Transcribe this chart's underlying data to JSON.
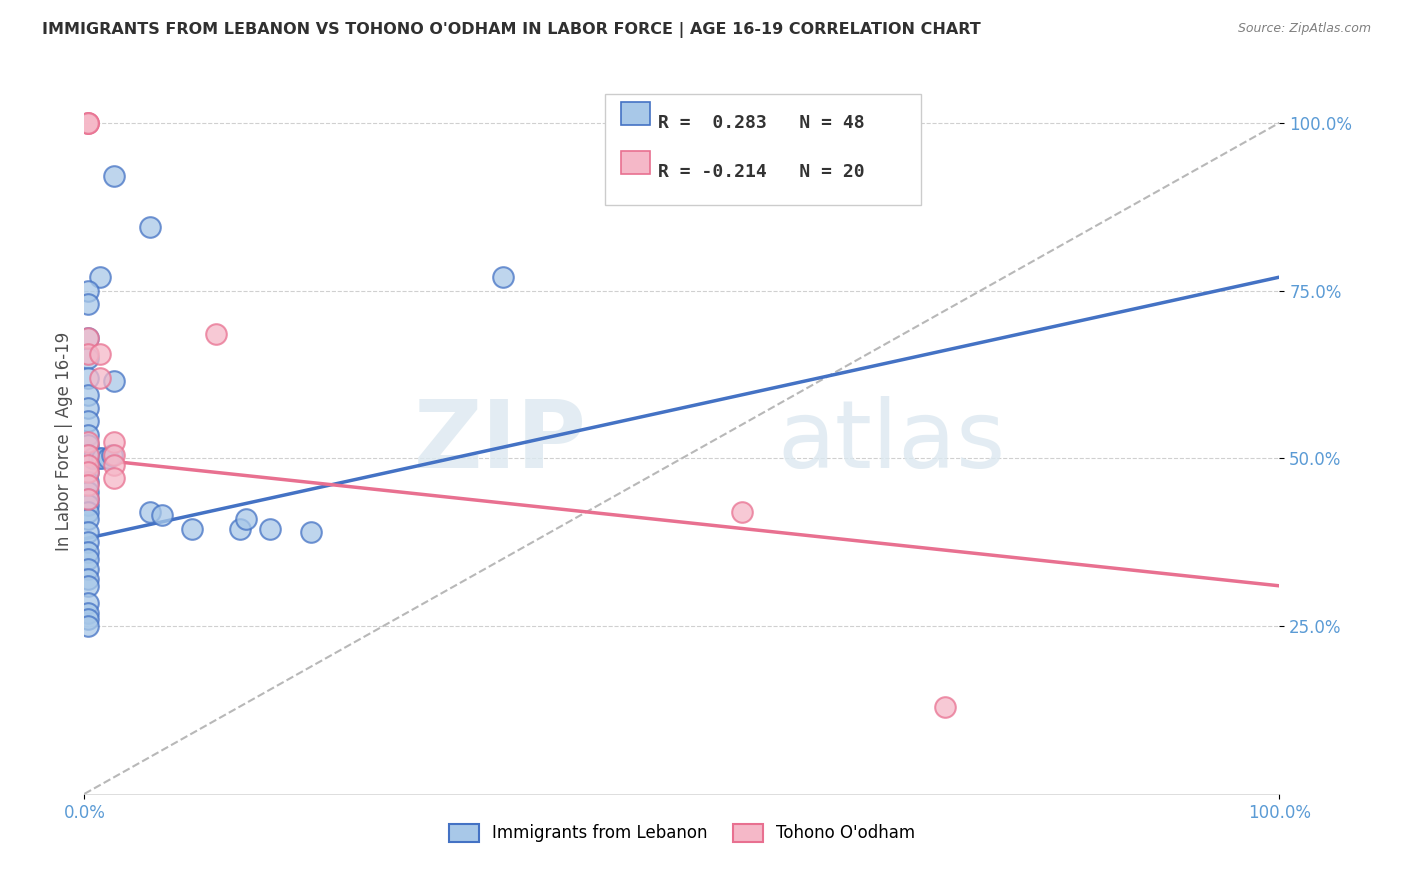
{
  "title": "IMMIGRANTS FROM LEBANON VS TOHONO O'ODHAM IN LABOR FORCE | AGE 16-19 CORRELATION CHART",
  "source": "Source: ZipAtlas.com",
  "ylabel": "In Labor Force | Age 16-19",
  "xlim": [
    0.0,
    1.0
  ],
  "ylim": [
    0.0,
    1.05
  ],
  "xtick_labels": [
    "0.0%",
    "100.0%"
  ],
  "ytick_labels": [
    "25.0%",
    "50.0%",
    "75.0%",
    "100.0%"
  ],
  "ytick_positions": [
    0.25,
    0.5,
    0.75,
    1.0
  ],
  "xtick_positions": [
    0.0,
    1.0
  ],
  "legend_r1": "R =  0.283",
  "legend_n1": "N = 48",
  "legend_r2": "R = -0.214",
  "legend_n2": "N = 20",
  "color_blue": "#a8c8e8",
  "color_pink": "#f5b8c8",
  "line_blue": "#4472c4",
  "line_pink": "#e87090",
  "line_dashed": "#b8b8b8",
  "watermark_zip": "ZIP",
  "watermark_atlas": "atlas",
  "blue_scatter_x": [
    0.025,
    0.055,
    0.013,
    0.003,
    0.003,
    0.003,
    0.003,
    0.003,
    0.003,
    0.003,
    0.003,
    0.003,
    0.003,
    0.003,
    0.003,
    0.003,
    0.003,
    0.003,
    0.003,
    0.003,
    0.003,
    0.003,
    0.003,
    0.003,
    0.003,
    0.003,
    0.003,
    0.003,
    0.003,
    0.003,
    0.003,
    0.003,
    0.003,
    0.007,
    0.007,
    0.012,
    0.015,
    0.02,
    0.023,
    0.025,
    0.055,
    0.065,
    0.09,
    0.13,
    0.135,
    0.155,
    0.19,
    0.35
  ],
  "blue_scatter_y": [
    0.92,
    0.845,
    0.77,
    0.75,
    0.73,
    0.68,
    0.65,
    0.62,
    0.595,
    0.575,
    0.555,
    0.535,
    0.52,
    0.505,
    0.495,
    0.48,
    0.465,
    0.45,
    0.44,
    0.43,
    0.42,
    0.41,
    0.39,
    0.375,
    0.36,
    0.35,
    0.335,
    0.32,
    0.31,
    0.285,
    0.27,
    0.26,
    0.25,
    0.5,
    0.5,
    0.5,
    0.5,
    0.5,
    0.505,
    0.615,
    0.42,
    0.415,
    0.395,
    0.395,
    0.41,
    0.395,
    0.39,
    0.77
  ],
  "pink_scatter_x": [
    0.003,
    0.003,
    0.003,
    0.003,
    0.003,
    0.003,
    0.003,
    0.003,
    0.003,
    0.003,
    0.003,
    0.013,
    0.013,
    0.025,
    0.025,
    0.025,
    0.025,
    0.11,
    0.55,
    0.72
  ],
  "pink_scatter_y": [
    1.0,
    1.0,
    1.0,
    0.68,
    0.655,
    0.525,
    0.505,
    0.49,
    0.48,
    0.46,
    0.44,
    0.655,
    0.62,
    0.525,
    0.505,
    0.49,
    0.47,
    0.685,
    0.42,
    0.13
  ],
  "blue_line_x": [
    0.0,
    1.0
  ],
  "blue_line_y": [
    0.38,
    0.77
  ],
  "pink_line_x": [
    0.0,
    1.0
  ],
  "pink_line_y": [
    0.5,
    0.31
  ],
  "dash_line_x": [
    0.0,
    1.0
  ],
  "dash_line_y": [
    0.0,
    1.0
  ]
}
